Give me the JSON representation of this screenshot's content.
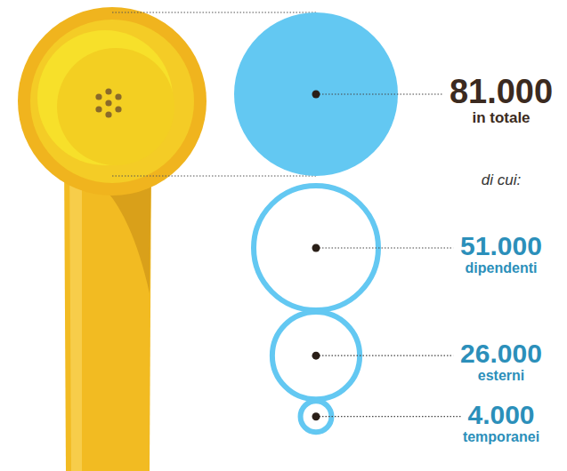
{
  "chart_data": {
    "type": "bubble",
    "subtitle": "di cui:",
    "categories": [
      "in totale",
      "dipendenti",
      "esterni",
      "temporanei"
    ],
    "values": [
      81000,
      51000,
      26000,
      4000
    ],
    "value_labels": [
      "81.000",
      "51.000",
      "26.000",
      "4.000"
    ],
    "color": "#63c8f2"
  }
}
